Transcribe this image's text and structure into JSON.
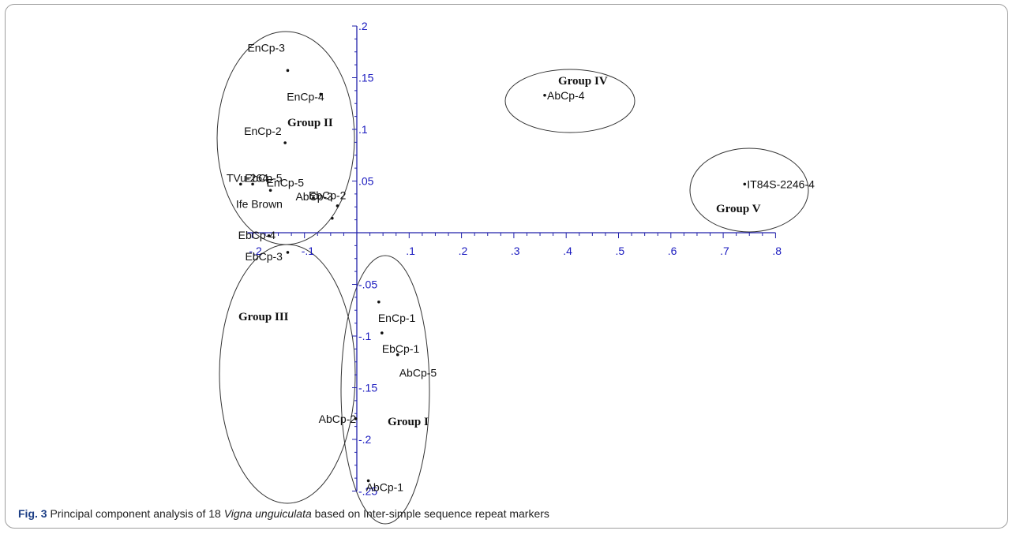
{
  "caption": {
    "fig_label": "Fig. 3",
    "text_before": "Principal component analysis of 18 ",
    "species": "Vigna unguiculata",
    "text_after": " based on Inter-simple sequence repeat markers"
  },
  "chart_data": {
    "type": "scatter",
    "title": "",
    "xlabel": "",
    "ylabel": "",
    "xlim": [
      -0.2,
      0.8
    ],
    "ylim": [
      -0.25,
      0.2
    ],
    "x_ticks": [
      -0.2,
      -0.1,
      0.1,
      0.2,
      0.3,
      0.4,
      0.5,
      0.6,
      0.7,
      0.8
    ],
    "x_tick_labels": [
      "-.2",
      "-.1",
      ".1",
      ".2",
      ".3",
      ".4",
      ".5",
      ".6",
      ".7",
      ".8"
    ],
    "y_ticks": [
      0.2,
      0.15,
      0.1,
      0.05,
      -0.05,
      -0.1,
      -0.15,
      -0.2,
      -0.25
    ],
    "y_tick_labels": [
      ".2",
      ".15",
      ".1",
      ".05",
      "-.05",
      "-.1",
      "-.15",
      "-.2",
      "-.25"
    ],
    "points": [
      {
        "label": "EnCp-3",
        "x": -0.132,
        "y": 0.157
      },
      {
        "label": "EnCp-4",
        "x": -0.069,
        "y": 0.134
      },
      {
        "label": "EnCp-2",
        "x": -0.137,
        "y": 0.087
      },
      {
        "label": "TVu-264",
        "x": -0.222,
        "y": 0.047
      },
      {
        "label": "EbCp-5",
        "x": -0.199,
        "y": 0.047
      },
      {
        "label": "EnCp-5",
        "x": -0.165,
        "y": 0.041
      },
      {
        "label": "EbCp-2",
        "x": -0.083,
        "y": 0.034
      },
      {
        "label": "AbCp-3",
        "x": -0.037,
        "y": 0.026
      },
      {
        "label": "Ife Brown",
        "x": -0.047,
        "y": 0.014
      },
      {
        "label": "EbCp-4",
        "x": -0.168,
        "y": -0.003
      },
      {
        "label": "EbCp-3",
        "x": -0.132,
        "y": -0.019
      },
      {
        "label": "AbCp-4",
        "x": 0.359,
        "y": 0.133
      },
      {
        "label": "IT84S-2246-4",
        "x": 0.741,
        "y": 0.047
      },
      {
        "label": "EnCp-1",
        "x": 0.042,
        "y": -0.067
      },
      {
        "label": "EbCp-1",
        "x": 0.048,
        "y": -0.097
      },
      {
        "label": "AbCp-5",
        "x": 0.078,
        "y": -0.118
      },
      {
        "label": "AbCp-2",
        "x": -0.002,
        "y": -0.18
      },
      {
        "label": "AbCp-1",
        "x": 0.022,
        "y": -0.24
      }
    ],
    "groups": [
      "Group I",
      "Group II",
      "Group III",
      "Group IV",
      "Group V"
    ]
  }
}
